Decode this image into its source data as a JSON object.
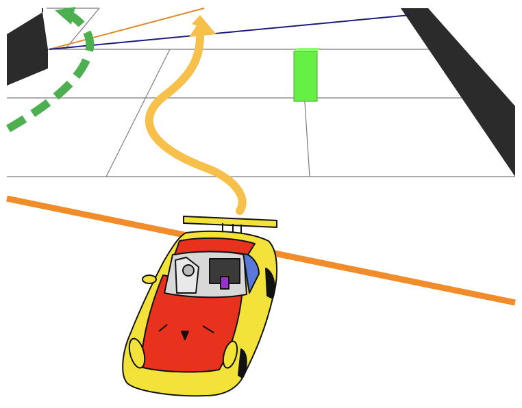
{
  "colors": {
    "background": "#ffffff",
    "floor_grid": "#7a7a7a",
    "wall": "#2b2b2b",
    "orange_line": "#f08c2a",
    "blue_line": "#1a1a7a",
    "green_box": "#6cf04a",
    "green_dashed_arrow": "#4caf50",
    "yellow_arrow": "#f7c04a",
    "car_body": "#f2e23a",
    "car_red": "#e8321e",
    "car_outline": "#111111",
    "purple_part": "#9b2fd0",
    "blue_window": "#5a78d8"
  },
  "icons": {
    "green_arrow": "dashed-curved-arrow-icon",
    "yellow_arrow": "wavy-arrow-icon"
  }
}
